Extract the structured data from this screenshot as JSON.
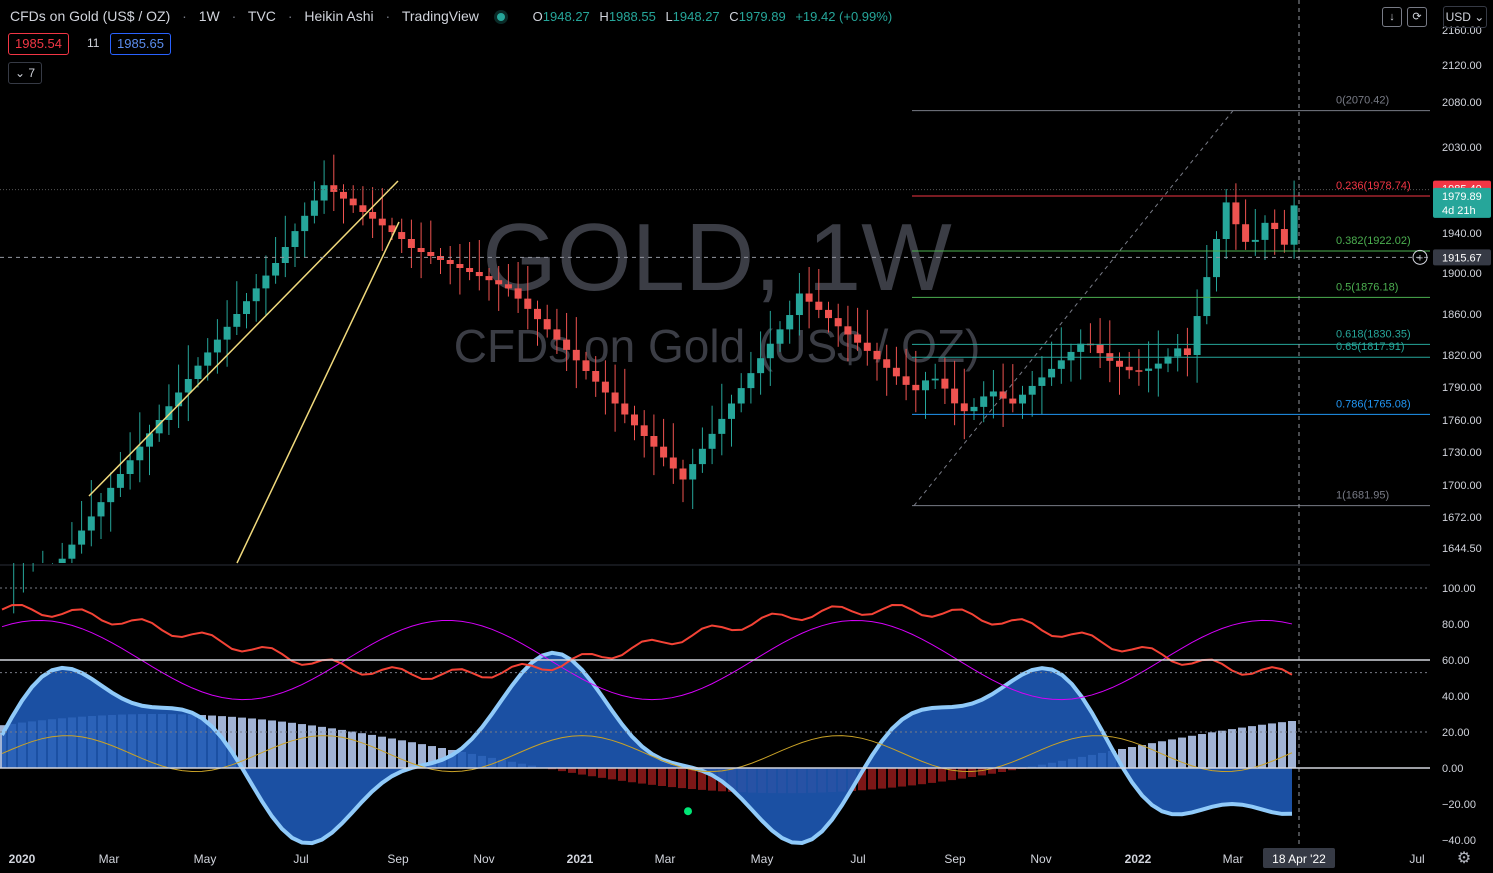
{
  "header": {
    "symbol": "CFDs on Gold (US$ / OZ)",
    "interval": "1W",
    "exchange": "TVC",
    "chart_style": "Heikin Ashi",
    "source": "TradingView",
    "o_label": "O",
    "o_value": "1948.27",
    "h_label": "H",
    "h_value": "1988.55",
    "l_label": "L",
    "l_value": "1948.27",
    "c_label": "C",
    "c_value": "1979.89",
    "change": "+19.42 (+0.99%)"
  },
  "trade": {
    "sell": "1985.54",
    "spread": "11",
    "buy": "1985.65"
  },
  "indicators_toggle": {
    "icon": "chevron-down-icon",
    "count": "7"
  },
  "toolbar": {
    "download_icon": "arrow-down-icon",
    "compare_icon": "loop-icon",
    "currency": "USD"
  },
  "watermark": {
    "line1": "GOLD, 1W",
    "line2": "CFDs on Gold (US$ / OZ)"
  },
  "price_axis": {
    "ticks": [
      "2160.00",
      "2120.00",
      "2080.00",
      "2030.00",
      "1940.00",
      "1900.00",
      "1860.00",
      "1820.00",
      "1790.00",
      "1760.00",
      "1730.00",
      "1700.00",
      "1672.00",
      "1644.50"
    ],
    "tick_y": [
      30,
      65,
      102,
      147,
      233,
      273,
      314,
      355,
      387,
      420,
      452,
      485,
      517,
      548
    ],
    "ask_label": "1985.40",
    "last_label": "1979.89",
    "countdown": "4d 21h",
    "crosshair_label": "1915.67"
  },
  "osc_axis": {
    "ticks": [
      "100.00",
      "80.00",
      "60.00",
      "40.00",
      "20.00",
      "0.00",
      "−20.00",
      "−40.00"
    ],
    "values": [
      100,
      80,
      60,
      40,
      20,
      0,
      -20,
      -40
    ]
  },
  "time_axis": {
    "labels": [
      "2020",
      "Mar",
      "May",
      "Jul",
      "Sep",
      "Nov",
      "2021",
      "Mar",
      "May",
      "Jul",
      "Sep",
      "Nov",
      "2022",
      "Mar",
      "Jul"
    ],
    "bold": [
      true,
      false,
      false,
      false,
      false,
      false,
      true,
      false,
      false,
      false,
      false,
      false,
      true,
      false,
      false
    ],
    "crosshair_label": "18 Apr '22",
    "settings_icon": "gear-icon"
  },
  "colors": {
    "up": "#26a69a",
    "down": "#ef5350",
    "fib_red": "#f23645",
    "fib_green": "#4caf50",
    "fib_teal": "#26a69a",
    "fib_blue": "#2196f3",
    "trendline": "#f0d97c",
    "osc_fill": "#1e59b5",
    "osc_light": "#90caf9"
  },
  "chart_data": [
    {
      "type": "candlestick",
      "style": "Heikin Ashi",
      "interval": "1W",
      "x_range": [
        "2020-01",
        "2022-07"
      ],
      "ylim": [
        1630,
        2170
      ],
      "ohlc_latest": {
        "open": 1948.27,
        "high": 1988.55,
        "low": 1948.27,
        "close": 1979.89,
        "change": 19.42,
        "change_pct": 0.99
      },
      "fibonacci": {
        "high": 2070.42,
        "low": 1681.95,
        "levels": [
          {
            "ratio": "0",
            "price": 2070.42,
            "label": "0(2070.42)"
          },
          {
            "ratio": "0.236",
            "price": 1978.74,
            "label": "0.236(1978.74)"
          },
          {
            "ratio": "0.382",
            "price": 1922.02,
            "label": "0.382(1922.02)"
          },
          {
            "ratio": "0.5",
            "price": 1876.18,
            "label": "0.5(1876.18)"
          },
          {
            "ratio": "0.618",
            "price": 1830.35,
            "label": "0.618(1830.35)"
          },
          {
            "ratio": "0.65",
            "price": 1817.91,
            "label": "0.65(1817.91)"
          },
          {
            "ratio": "0.786",
            "price": 1765.08,
            "label": "0.786(1765.08)"
          },
          {
            "ratio": "1",
            "price": 1681.95,
            "label": "1(1681.95)"
          }
        ]
      },
      "crosshair": {
        "price": 1915.67,
        "date": "18 Apr '22"
      }
    },
    {
      "type": "line",
      "panel": "oscillator",
      "ylim": [
        -45,
        105
      ],
      "reference_levels": [
        100,
        60,
        53,
        20,
        0
      ]
    }
  ]
}
